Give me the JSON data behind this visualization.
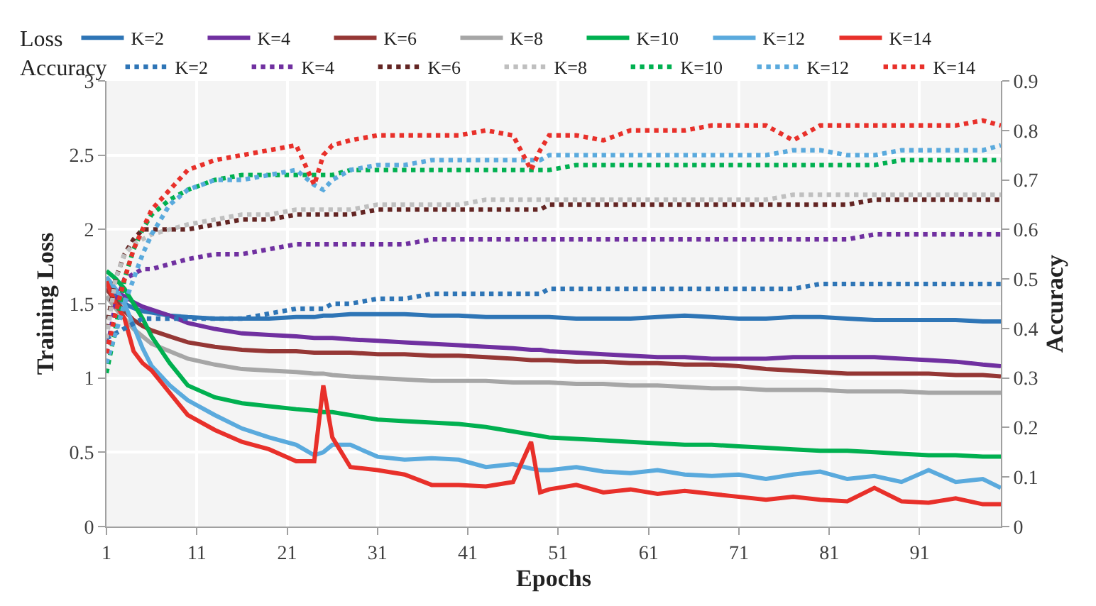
{
  "chart_data": {
    "type": "line",
    "xlabel": "Epochs",
    "ylabel": "Training Loss",
    "y2label": "Accuracy",
    "legend_title": [
      "Loss",
      "Accuracy"
    ],
    "x": [
      1,
      2,
      3,
      4,
      5,
      6,
      8,
      10,
      13,
      16,
      19,
      22,
      24,
      25,
      26,
      28,
      31,
      34,
      37,
      40,
      43,
      46,
      48,
      49,
      50,
      53,
      56,
      59,
      62,
      65,
      68,
      71,
      74,
      77,
      80,
      83,
      86,
      89,
      92,
      95,
      98,
      100
    ],
    "xlim": [
      1,
      100
    ],
    "xticks": [
      1,
      11,
      21,
      31,
      41,
      51,
      61,
      71,
      81,
      91
    ],
    "ylim": [
      0,
      3
    ],
    "yticks": [
      0,
      0.5,
      1,
      1.5,
      2,
      2.5,
      3
    ],
    "y2lim": [
      0,
      0.9
    ],
    "y2ticks": [
      0,
      0.1,
      0.2,
      0.3,
      0.4,
      0.5,
      0.6,
      0.7,
      0.8,
      0.9
    ],
    "grid": true,
    "legend": "top",
    "marker": "none",
    "series": [
      {
        "name": "K=2",
        "color": "#2e75b6",
        "line_style": "solid",
        "values": [
          1.65,
          1.55,
          1.5,
          1.47,
          1.45,
          1.44,
          1.42,
          1.41,
          1.4,
          1.4,
          1.4,
          1.41,
          1.41,
          1.42,
          1.42,
          1.43,
          1.43,
          1.43,
          1.42,
          1.42,
          1.41,
          1.41,
          1.41,
          1.41,
          1.41,
          1.4,
          1.4,
          1.4,
          1.41,
          1.42,
          1.41,
          1.4,
          1.4,
          1.41,
          1.41,
          1.4,
          1.39,
          1.39,
          1.39,
          1.39,
          1.38,
          1.38
        ]
      },
      {
        "name": "K=4",
        "color": "#7030a0",
        "line_style": "solid",
        "values": [
          1.6,
          1.58,
          1.55,
          1.51,
          1.48,
          1.46,
          1.42,
          1.37,
          1.33,
          1.3,
          1.29,
          1.28,
          1.27,
          1.27,
          1.27,
          1.26,
          1.25,
          1.24,
          1.23,
          1.22,
          1.21,
          1.2,
          1.19,
          1.19,
          1.18,
          1.17,
          1.16,
          1.15,
          1.14,
          1.14,
          1.13,
          1.13,
          1.13,
          1.14,
          1.14,
          1.14,
          1.14,
          1.13,
          1.12,
          1.11,
          1.09,
          1.08
        ]
      },
      {
        "name": "K=6",
        "color": "#953735",
        "line_style": "solid",
        "values": [
          1.6,
          1.52,
          1.45,
          1.39,
          1.35,
          1.32,
          1.28,
          1.24,
          1.21,
          1.19,
          1.18,
          1.18,
          1.17,
          1.17,
          1.17,
          1.17,
          1.16,
          1.16,
          1.15,
          1.15,
          1.14,
          1.13,
          1.12,
          1.12,
          1.12,
          1.11,
          1.11,
          1.1,
          1.1,
          1.09,
          1.09,
          1.08,
          1.06,
          1.05,
          1.04,
          1.03,
          1.03,
          1.03,
          1.03,
          1.02,
          1.02,
          1.01
        ]
      },
      {
        "name": "K=8",
        "color": "#a6a6a6",
        "line_style": "solid",
        "values": [
          1.55,
          1.47,
          1.4,
          1.33,
          1.28,
          1.23,
          1.18,
          1.13,
          1.09,
          1.06,
          1.05,
          1.04,
          1.03,
          1.03,
          1.02,
          1.01,
          1.0,
          0.99,
          0.98,
          0.98,
          0.98,
          0.97,
          0.97,
          0.97,
          0.97,
          0.96,
          0.96,
          0.95,
          0.95,
          0.94,
          0.93,
          0.93,
          0.92,
          0.92,
          0.92,
          0.91,
          0.91,
          0.91,
          0.9,
          0.9,
          0.9,
          0.9
        ]
      },
      {
        "name": "K=10",
        "color": "#00b050",
        "line_style": "solid",
        "values": [
          1.72,
          1.67,
          1.6,
          1.5,
          1.4,
          1.28,
          1.1,
          0.95,
          0.87,
          0.83,
          0.81,
          0.79,
          0.78,
          0.77,
          0.77,
          0.75,
          0.72,
          0.71,
          0.7,
          0.69,
          0.67,
          0.64,
          0.62,
          0.61,
          0.6,
          0.59,
          0.58,
          0.57,
          0.56,
          0.55,
          0.55,
          0.54,
          0.53,
          0.52,
          0.51,
          0.51,
          0.5,
          0.49,
          0.48,
          0.48,
          0.47,
          0.47
        ]
      },
      {
        "name": "K=12",
        "color": "#5aaadd",
        "line_style": "solid",
        "values": [
          1.68,
          1.6,
          1.5,
          1.35,
          1.2,
          1.08,
          0.95,
          0.85,
          0.75,
          0.66,
          0.6,
          0.55,
          0.48,
          0.5,
          0.55,
          0.55,
          0.47,
          0.45,
          0.46,
          0.45,
          0.4,
          0.42,
          0.39,
          0.38,
          0.38,
          0.4,
          0.37,
          0.36,
          0.38,
          0.35,
          0.34,
          0.35,
          0.32,
          0.35,
          0.37,
          0.32,
          0.34,
          0.3,
          0.38,
          0.3,
          0.32,
          0.26
        ]
      },
      {
        "name": "K=14",
        "color": "#e8302a",
        "line_style": "solid",
        "values": [
          1.65,
          1.5,
          1.4,
          1.18,
          1.1,
          1.05,
          0.9,
          0.75,
          0.65,
          0.57,
          0.52,
          0.44,
          0.44,
          0.95,
          0.6,
          0.4,
          0.38,
          0.35,
          0.28,
          0.28,
          0.27,
          0.3,
          0.57,
          0.23,
          0.25,
          0.28,
          0.23,
          0.25,
          0.22,
          0.24,
          0.22,
          0.2,
          0.18,
          0.2,
          0.18,
          0.17,
          0.26,
          0.17,
          0.16,
          0.19,
          0.15,
          0.15
        ]
      },
      {
        "name": "K=2",
        "color": "#2e75b6",
        "line_style": "dotted",
        "axis": "y2",
        "values": [
          0.38,
          0.39,
          0.4,
          0.41,
          0.42,
          0.42,
          0.42,
          0.42,
          0.42,
          0.42,
          0.43,
          0.44,
          0.44,
          0.44,
          0.45,
          0.45,
          0.46,
          0.46,
          0.47,
          0.47,
          0.47,
          0.47,
          0.47,
          0.47,
          0.48,
          0.48,
          0.48,
          0.48,
          0.48,
          0.48,
          0.48,
          0.48,
          0.48,
          0.48,
          0.49,
          0.49,
          0.49,
          0.49,
          0.49,
          0.49,
          0.49,
          0.49
        ]
      },
      {
        "name": "K=4",
        "color": "#7030a0",
        "line_style": "dotted",
        "axis": "y2",
        "values": [
          0.35,
          0.45,
          0.5,
          0.51,
          0.52,
          0.52,
          0.53,
          0.54,
          0.55,
          0.55,
          0.56,
          0.57,
          0.57,
          0.57,
          0.57,
          0.57,
          0.57,
          0.57,
          0.58,
          0.58,
          0.58,
          0.58,
          0.58,
          0.58,
          0.58,
          0.58,
          0.58,
          0.58,
          0.58,
          0.58,
          0.58,
          0.58,
          0.58,
          0.58,
          0.58,
          0.58,
          0.59,
          0.59,
          0.59,
          0.59,
          0.59,
          0.59
        ]
      },
      {
        "name": "K=6",
        "color": "#632523",
        "line_style": "dotted",
        "axis": "y2",
        "values": [
          0.4,
          0.5,
          0.55,
          0.58,
          0.6,
          0.6,
          0.6,
          0.6,
          0.61,
          0.62,
          0.62,
          0.63,
          0.63,
          0.63,
          0.63,
          0.63,
          0.64,
          0.64,
          0.64,
          0.64,
          0.64,
          0.64,
          0.64,
          0.64,
          0.65,
          0.65,
          0.65,
          0.65,
          0.65,
          0.65,
          0.65,
          0.65,
          0.65,
          0.65,
          0.65,
          0.65,
          0.66,
          0.66,
          0.66,
          0.66,
          0.66,
          0.66
        ]
      },
      {
        "name": "K=8",
        "color": "#bfbfbf",
        "line_style": "dotted",
        "axis": "y2",
        "values": [
          0.38,
          0.5,
          0.55,
          0.57,
          0.58,
          0.59,
          0.6,
          0.61,
          0.62,
          0.63,
          0.63,
          0.64,
          0.64,
          0.64,
          0.64,
          0.64,
          0.65,
          0.65,
          0.65,
          0.65,
          0.66,
          0.66,
          0.66,
          0.66,
          0.66,
          0.66,
          0.66,
          0.66,
          0.66,
          0.66,
          0.66,
          0.66,
          0.66,
          0.67,
          0.67,
          0.67,
          0.67,
          0.67,
          0.67,
          0.67,
          0.67,
          0.67
        ]
      },
      {
        "name": "K=10",
        "color": "#00b050",
        "line_style": "dotted",
        "axis": "y2",
        "values": [
          0.31,
          0.4,
          0.5,
          0.56,
          0.6,
          0.63,
          0.66,
          0.68,
          0.7,
          0.71,
          0.71,
          0.71,
          0.71,
          0.71,
          0.71,
          0.72,
          0.72,
          0.72,
          0.72,
          0.72,
          0.72,
          0.72,
          0.72,
          0.72,
          0.72,
          0.73,
          0.73,
          0.73,
          0.73,
          0.73,
          0.73,
          0.73,
          0.73,
          0.73,
          0.73,
          0.73,
          0.73,
          0.74,
          0.74,
          0.74,
          0.74,
          0.74
        ]
      },
      {
        "name": "K=12",
        "color": "#5aaadd",
        "line_style": "dotted",
        "axis": "y2",
        "values": [
          0.33,
          0.39,
          0.45,
          0.5,
          0.55,
          0.59,
          0.65,
          0.68,
          0.7,
          0.7,
          0.71,
          0.72,
          0.69,
          0.68,
          0.7,
          0.72,
          0.73,
          0.73,
          0.74,
          0.74,
          0.74,
          0.74,
          0.74,
          0.74,
          0.75,
          0.75,
          0.75,
          0.75,
          0.75,
          0.75,
          0.75,
          0.75,
          0.75,
          0.76,
          0.76,
          0.75,
          0.75,
          0.76,
          0.76,
          0.76,
          0.76,
          0.77
        ]
      },
      {
        "name": "K=14",
        "color": "#e8302a",
        "line_style": "dotted",
        "axis": "y2",
        "values": [
          0.35,
          0.43,
          0.5,
          0.56,
          0.6,
          0.64,
          0.68,
          0.72,
          0.74,
          0.75,
          0.76,
          0.77,
          0.69,
          0.75,
          0.77,
          0.78,
          0.79,
          0.79,
          0.79,
          0.79,
          0.8,
          0.79,
          0.72,
          0.76,
          0.79,
          0.79,
          0.78,
          0.8,
          0.8,
          0.8,
          0.81,
          0.81,
          0.81,
          0.78,
          0.81,
          0.81,
          0.81,
          0.81,
          0.81,
          0.81,
          0.82,
          0.81
        ]
      }
    ]
  }
}
